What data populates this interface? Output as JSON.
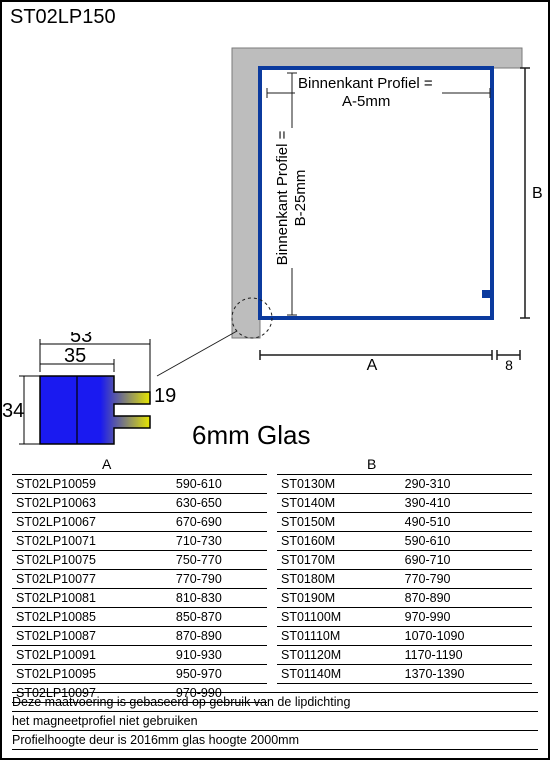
{
  "title": "ST02LP150",
  "diagram": {
    "outer_fill": "#bdbdbd",
    "outer_stroke": "#7a7a7a",
    "frame_stroke": "#0b3a9e",
    "frame_stroke_width": 2,
    "dim_stroke": "#1c1c1c",
    "label_top": "Binnenkant Profiel =",
    "label_top2": "A-5mm",
    "label_left": "Binnenkant Profiel =",
    "label_left2": "B-25mm",
    "label_A": "A",
    "label_B": "B",
    "label_8": "8"
  },
  "shape": {
    "dim_top_outer": "53",
    "dim_top_inner": "35",
    "dim_left": "34",
    "dim_right": "19",
    "fill_left": "#1a1af0",
    "fill_right": "#e6e600",
    "stroke": "#000000"
  },
  "glass_label": "6mm Glas",
  "table_header_A": "A",
  "table_header_B": "B",
  "tableA": [
    {
      "code": "ST02LP10059",
      "val": "590-610"
    },
    {
      "code": "ST02LP10063",
      "val": "630-650"
    },
    {
      "code": "ST02LP10067",
      "val": "670-690"
    },
    {
      "code": "ST02LP10071",
      "val": "710-730"
    },
    {
      "code": "ST02LP10075",
      "val": "750-770"
    },
    {
      "code": "ST02LP10077",
      "val": "770-790"
    },
    {
      "code": "ST02LP10081",
      "val": "810-830"
    },
    {
      "code": "ST02LP10085",
      "val": "850-870"
    },
    {
      "code": "ST02LP10087",
      "val": "870-890"
    },
    {
      "code": "ST02LP10091",
      "val": "910-930"
    },
    {
      "code": "ST02LP10095",
      "val": "950-970"
    },
    {
      "code": "ST02LP10097",
      "val": "970-990"
    }
  ],
  "tableB": [
    {
      "code": "ST0130M",
      "val": "290-310"
    },
    {
      "code": "ST0140M",
      "val": "390-410"
    },
    {
      "code": "ST0150M",
      "val": "490-510"
    },
    {
      "code": "ST0160M",
      "val": "590-610"
    },
    {
      "code": "ST0170M",
      "val": "690-710"
    },
    {
      "code": "ST0180M",
      "val": "770-790"
    },
    {
      "code": "ST0190M",
      "val": "870-890"
    },
    {
      "code": "ST01100M",
      "val": "970-990"
    },
    {
      "code": "ST01110M",
      "val": "1070-1090"
    },
    {
      "code": "ST01120M",
      "val": "1170-1190"
    },
    {
      "code": "ST01140M",
      "val": "1370-1390"
    }
  ],
  "notes": [
    "Deze maatvoering is gebaseerd op gebruik van de lipdichting",
    "het magneetprofiel niet gebruiken",
    "Profielhoogte deur is 2016mm glas hoogte  2000mm"
  ]
}
